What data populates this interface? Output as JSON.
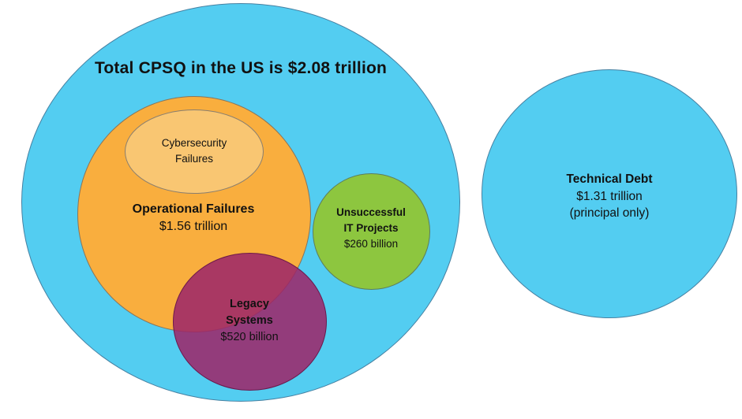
{
  "diagram": {
    "title": "Total CPSQ in the US is $2.08 trillion",
    "bubbles": {
      "total": {
        "label": "Total CPSQ in the US is $2.08 trillion",
        "fill": "#53CDF1"
      },
      "operational_failures": {
        "name": "Operational Failures",
        "value": "$1.56 trillion",
        "fill": "#F9AE3E"
      },
      "cybersecurity_failures": {
        "line1": "Cybersecurity",
        "line2": "Failures",
        "fill": "#F9C672"
      },
      "unsuccessful_it_projects": {
        "line1": "Unsuccessful",
        "line2": "IT Projects",
        "value": "$260 billion",
        "fill": "#8DC63F"
      },
      "legacy_systems": {
        "line1": "Legacy",
        "line2": "Systems",
        "value": "$520 billion",
        "fill": "rgba(156,38,105,0.87)"
      },
      "technical_debt": {
        "name": "Technical Debt",
        "value": "$1.31 trillion",
        "note": "(principal only)",
        "fill": "#53CDF1"
      }
    }
  },
  "chart_data": {
    "type": "euler-venn",
    "title": "Total CPSQ in the US is $2.08 trillion",
    "unit": "USD billions",
    "sets": [
      {
        "label": "Total CPSQ in the US",
        "value": 2080,
        "display": "$2.08 trillion",
        "contains": [
          "Operational Failures",
          "Unsuccessful IT Projects",
          "Legacy Systems"
        ]
      },
      {
        "label": "Operational Failures",
        "value": 1560,
        "display": "$1.56 trillion",
        "contains": [
          "Cybersecurity Failures"
        ]
      },
      {
        "label": "Cybersecurity Failures",
        "value": null,
        "display": "",
        "contains": []
      },
      {
        "label": "Unsuccessful IT Projects",
        "value": 260,
        "display": "$260 billion",
        "contains": []
      },
      {
        "label": "Legacy Systems",
        "value": 520,
        "display": "$520 billion",
        "overlaps": [
          "Operational Failures"
        ],
        "contains": []
      },
      {
        "label": "Technical Debt",
        "value": 1310,
        "display": "$1.31 trillion (principal only)",
        "separate": true,
        "contains": []
      }
    ]
  }
}
